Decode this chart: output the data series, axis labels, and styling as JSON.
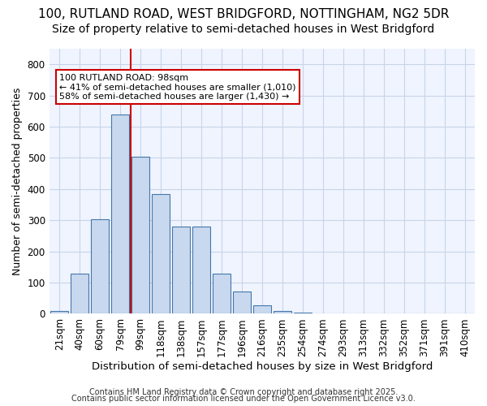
{
  "title1": "100, RUTLAND ROAD, WEST BRIDGFORD, NOTTINGHAM, NG2 5DR",
  "title2": "Size of property relative to semi-detached houses in West Bridgford",
  "xlabel": "Distribution of semi-detached houses by size in West Bridgford",
  "ylabel": "Number of semi-detached properties",
  "bar_labels": [
    "21sqm",
    "40sqm",
    "60sqm",
    "79sqm",
    "99sqm",
    "118sqm",
    "138sqm",
    "157sqm",
    "177sqm",
    "196sqm",
    "216sqm",
    "235sqm",
    "254sqm",
    "274sqm",
    "293sqm",
    "313sqm",
    "332sqm",
    "352sqm",
    "371sqm",
    "391sqm",
    "410sqm"
  ],
  "bar_values": [
    8,
    128,
    303,
    638,
    503,
    383,
    280,
    280,
    130,
    72,
    27,
    10,
    5,
    0,
    0,
    0,
    0,
    0,
    0,
    0,
    0
  ],
  "bar_color": "#c8d8ee",
  "bar_edge_color": "#4477aa",
  "red_line_index": 4,
  "annotation_line1": "100 RUTLAND ROAD: 98sqm",
  "annotation_line2": "← 41% of semi-detached houses are smaller (1,010)",
  "annotation_line3": "58% of semi-detached houses are larger (1,430) →",
  "annotation_box_color": "#ffffff",
  "annotation_box_edge": "#cc0000",
  "footer1": "Contains HM Land Registry data © Crown copyright and database right 2025.",
  "footer2": "Contains public sector information licensed under the Open Government Licence v3.0.",
  "background_color": "#ffffff",
  "plot_bg_color": "#f0f4ff",
  "grid_color": "#c8d4e8",
  "ylim": [
    0,
    850
  ],
  "yticks": [
    0,
    100,
    200,
    300,
    400,
    500,
    600,
    700,
    800
  ],
  "title1_fontsize": 11,
  "title2_fontsize": 10,
  "xlabel_fontsize": 9.5,
  "ylabel_fontsize": 9,
  "tick_fontsize": 8.5,
  "footer_fontsize": 7
}
